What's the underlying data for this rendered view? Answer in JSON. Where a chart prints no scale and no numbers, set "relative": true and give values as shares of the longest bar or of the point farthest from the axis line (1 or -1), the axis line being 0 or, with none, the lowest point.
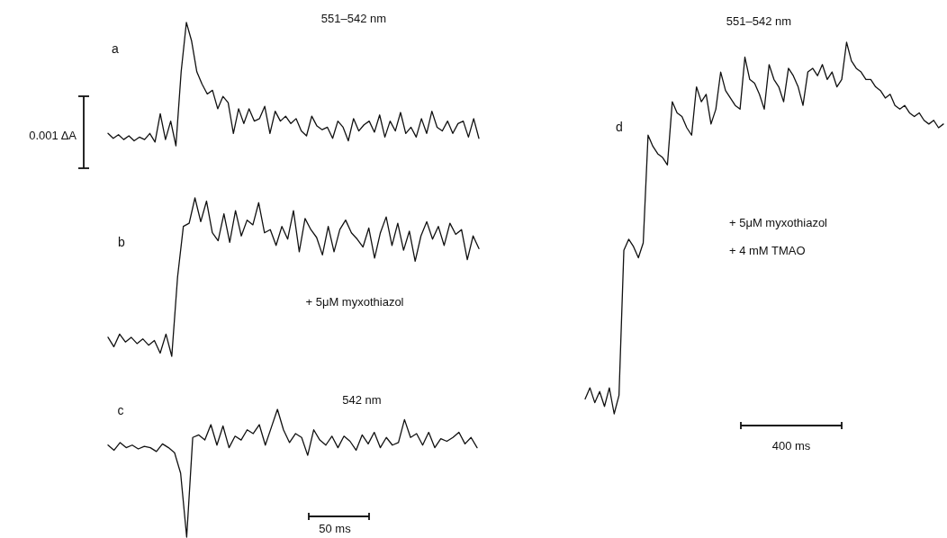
{
  "chart_data": [
    {
      "type": "line",
      "title": "551–542 nm",
      "relative": true,
      "color": "#111111",
      "annotations": [
        "a",
        "0.001 ΔA"
      ],
      "categories": [
        null,
        null,
        null,
        null,
        null,
        null,
        null,
        null,
        null,
        null,
        null,
        null,
        null,
        null,
        null,
        null,
        null,
        null,
        null,
        null,
        null,
        null,
        null,
        null,
        null,
        null,
        null,
        null,
        null,
        null,
        null,
        null,
        null,
        null,
        null,
        null,
        null,
        null,
        null,
        null,
        null,
        null,
        null,
        null,
        null,
        null,
        null,
        null,
        null,
        null,
        null,
        null,
        null,
        null,
        null,
        null,
        null,
        null,
        null,
        null,
        null,
        null,
        null,
        null,
        null,
        null,
        null,
        null,
        null,
        null,
        null,
        null
      ],
      "values": [
        0.1,
        0.06,
        0.09,
        0.05,
        0.08,
        0.04,
        0.07,
        0.05,
        0.1,
        0.03,
        0.26,
        0.05,
        0.2,
        0.0,
        0.6,
        1,
        0.85,
        0.6,
        0.5,
        0.42,
        0.45,
        0.3,
        0.4,
        0.35,
        0.1,
        0.3,
        0.18,
        0.3,
        0.2,
        0.22,
        0.32,
        0.1,
        0.28,
        0.2,
        0.24,
        0.18,
        0.22,
        0.12,
        0.08,
        0.24,
        0.16,
        0.13,
        0.15,
        0.06,
        0.2,
        0.15,
        0.04,
        0.22,
        0.12,
        0.17,
        0.2,
        0.11,
        0.25,
        0.07,
        0.2,
        0.12,
        0.27,
        0.1,
        0.15,
        0.07,
        0.22,
        0.1,
        0.28,
        0.15,
        0.12,
        0.2,
        0.1,
        0.18,
        0.2,
        0.07,
        0.22,
        0.06
      ]
    },
    {
      "type": "line",
      "relative": true,
      "color": "#111111",
      "annotations": [
        "b",
        "+ 5μM  myxothiazol"
      ],
      "categories": [
        null,
        null,
        null,
        null,
        null,
        null,
        null,
        null,
        null,
        null,
        null,
        null,
        null,
        null,
        null,
        null,
        null,
        null,
        null,
        null,
        null,
        null,
        null,
        null,
        null,
        null,
        null,
        null,
        null,
        null,
        null,
        null,
        null,
        null,
        null,
        null,
        null,
        null,
        null,
        null,
        null,
        null,
        null,
        null,
        null,
        null,
        null,
        null,
        null,
        null,
        null,
        null,
        null,
        null,
        null,
        null,
        null,
        null,
        null,
        null,
        null,
        null,
        null,
        null,
        null
      ],
      "values": [
        0.12,
        0.06,
        0.14,
        0.09,
        0.12,
        0.08,
        0.11,
        0.07,
        0.1,
        0.02,
        0.14,
        0.0,
        0.5,
        0.82,
        0.84,
        1,
        0.85,
        0.98,
        0.78,
        0.73,
        0.9,
        0.72,
        0.92,
        0.76,
        0.86,
        0.83,
        0.97,
        0.78,
        0.8,
        0.7,
        0.82,
        0.74,
        0.92,
        0.66,
        0.87,
        0.8,
        0.75,
        0.64,
        0.82,
        0.66,
        0.8,
        0.86,
        0.78,
        0.74,
        0.69,
        0.81,
        0.62,
        0.78,
        0.88,
        0.7,
        0.84,
        0.67,
        0.79,
        0.6,
        0.76,
        0.85,
        0.74,
        0.82,
        0.7,
        0.84,
        0.77,
        0.8,
        0.61,
        0.76,
        0.68
      ]
    },
    {
      "type": "line",
      "title": "542 nm",
      "relative": true,
      "color": "#111111",
      "annotations": [
        "c",
        "50 ms"
      ],
      "categories": [
        null,
        null,
        null,
        null,
        null,
        null,
        null,
        null,
        null,
        null,
        null,
        null,
        null,
        null,
        null,
        null,
        null,
        null,
        null,
        null,
        null,
        null,
        null,
        null,
        null,
        null,
        null,
        null,
        null,
        null,
        null,
        null,
        null,
        null,
        null,
        null,
        null,
        null,
        null,
        null,
        null,
        null,
        null,
        null,
        null,
        null,
        null,
        null,
        null,
        null,
        null,
        null,
        null,
        null,
        null,
        null,
        null,
        null,
        null,
        null,
        null,
        null
      ],
      "values": [
        0.72,
        0.68,
        0.74,
        0.7,
        0.72,
        0.69,
        0.71,
        0.7,
        0.67,
        0.73,
        0.7,
        0.66,
        0.5,
        0.0,
        0.78,
        0.8,
        0.76,
        0.88,
        0.72,
        0.87,
        0.7,
        0.79,
        0.76,
        0.84,
        0.81,
        0.88,
        0.72,
        0.86,
        1,
        0.84,
        0.74,
        0.81,
        0.78,
        0.64,
        0.84,
        0.76,
        0.72,
        0.79,
        0.7,
        0.79,
        0.75,
        0.68,
        0.8,
        0.73,
        0.82,
        0.7,
        0.78,
        0.72,
        0.74,
        0.92,
        0.78,
        0.81,
        0.72,
        0.82,
        0.7,
        0.77,
        0.75,
        0.78,
        0.82,
        0.73,
        0.78,
        0.7
      ]
    },
    {
      "type": "line",
      "title": "551–542 nm",
      "relative": true,
      "color": "#111111",
      "annotations": [
        "d",
        "+ 5μM  myxothiazol",
        "+  4 mM  TMAO",
        "400 ms"
      ],
      "categories": [
        null,
        null,
        null,
        null,
        null,
        null,
        null,
        null,
        null,
        null,
        null,
        null,
        null,
        null,
        null,
        null,
        null,
        null,
        null,
        null,
        null,
        null,
        null,
        null,
        null,
        null,
        null,
        null,
        null,
        null,
        null,
        null,
        null,
        null,
        null,
        null,
        null,
        null,
        null,
        null,
        null,
        null,
        null,
        null,
        null,
        null,
        null,
        null,
        null,
        null,
        null,
        null,
        null,
        null,
        null,
        null,
        null,
        null,
        null,
        null,
        null,
        null,
        null,
        null,
        null,
        null,
        null,
        null,
        null,
        null,
        null,
        null,
        null,
        null,
        null
      ],
      "values": [
        0.04,
        0.07,
        0.03,
        0.06,
        0.02,
        0.07,
        0.0,
        0.05,
        0.44,
        0.47,
        0.45,
        0.42,
        0.46,
        0.75,
        0.72,
        0.7,
        0.69,
        0.67,
        0.84,
        0.81,
        0.8,
        0.77,
        0.75,
        0.88,
        0.84,
        0.86,
        0.78,
        0.82,
        0.92,
        0.87,
        0.85,
        0.83,
        0.82,
        0.96,
        0.9,
        0.89,
        0.86,
        0.82,
        0.94,
        0.9,
        0.88,
        0.84,
        0.93,
        0.91,
        0.88,
        0.83,
        0.92,
        0.93,
        0.91,
        0.94,
        0.9,
        0.92,
        0.88,
        0.9,
        1.0,
        0.95,
        0.93,
        0.92,
        0.9,
        0.9,
        0.88,
        0.87,
        0.85,
        0.86,
        0.83,
        0.82,
        0.83,
        0.81,
        0.8,
        0.81,
        0.79,
        0.78,
        0.79,
        0.77,
        0.78
      ]
    }
  ]
}
